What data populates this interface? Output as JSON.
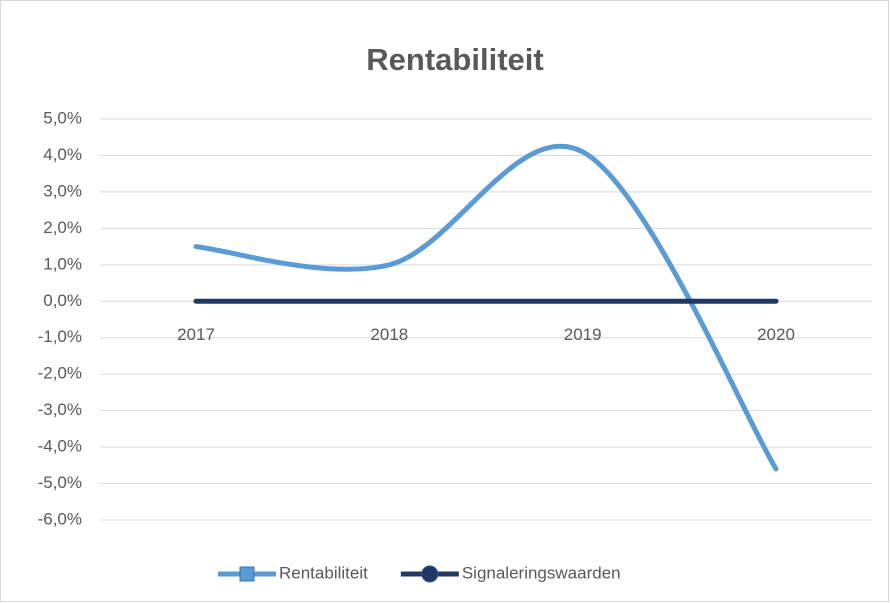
{
  "chart_data": {
    "type": "line",
    "title": "Rentabiliteit",
    "categories": [
      "2017",
      "2018",
      "2019",
      "2020"
    ],
    "series": [
      {
        "name": "Rentabiliteit",
        "color": "#5b9bd5",
        "values": [
          1.5,
          1.0,
          4.1,
          -4.6
        ]
      },
      {
        "name": "Signaleringswaarden",
        "color": "#1f3864",
        "values": [
          0,
          0,
          0,
          0
        ]
      }
    ],
    "smooth": true,
    "ylim": [
      -6,
      5
    ],
    "yticks": [
      {
        "value": -6,
        "label": "-6,0%"
      },
      {
        "value": -5,
        "label": "-5,0%"
      },
      {
        "value": -4,
        "label": "-4,0%"
      },
      {
        "value": -3,
        "label": "-3,0%"
      },
      {
        "value": -2,
        "label": "-2,0%"
      },
      {
        "value": -1,
        "label": "-1,0%"
      },
      {
        "value": 0,
        "label": "0,0%"
      },
      {
        "value": 1,
        "label": "1,0%"
      },
      {
        "value": 2,
        "label": "2,0%"
      },
      {
        "value": 3,
        "label": "3,0%"
      },
      {
        "value": 4,
        "label": "4,0%"
      },
      {
        "value": 5,
        "label": "5,0%"
      }
    ],
    "grid": true,
    "legend": "bottom"
  }
}
